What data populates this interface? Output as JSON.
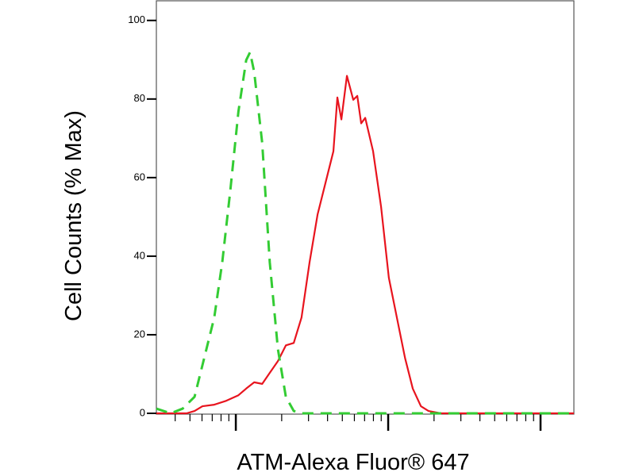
{
  "chart_data": {
    "type": "line",
    "x_label": "ATM-Alexa Fluor® 647",
    "y_label": "Cell Counts (% Max)",
    "xscale": "log",
    "xlim": [
      3.01,
      1655
    ],
    "xticks": [
      4,
      5,
      6,
      7,
      8,
      9,
      10,
      20,
      30,
      40,
      50,
      60,
      70,
      80,
      90,
      100,
      200,
      300,
      400,
      500,
      600,
      700,
      800,
      900,
      1000
    ],
    "ylim": [
      0,
      105
    ],
    "yticks": [
      0,
      20,
      40,
      60,
      80,
      100
    ],
    "series": [
      {
        "color": "#e8141e",
        "dash": false,
        "x": [
          3.01,
          4.75,
          5.36,
          6.04,
          7.22,
          8.66,
          10.4,
          11.7,
          13.2,
          14.9,
          16.7,
          18.9,
          21.3,
          24.0,
          27.0,
          30.5,
          34.4,
          38.8,
          43.7,
          46.4,
          49.3,
          53.6,
          59.0,
          62.7,
          66.5,
          70.7,
          79.6,
          89.8,
          101,
          114,
          129,
          145,
          164,
          184,
          221,
          1655
        ],
        "values": [
          0,
          0,
          0.6,
          1.8,
          2.2,
          3.2,
          4.6,
          6.3,
          7.9,
          7.5,
          10.3,
          13.3,
          17.3,
          17.9,
          24.4,
          38.5,
          50.6,
          58.7,
          66.7,
          80.4,
          74.8,
          85.9,
          79.8,
          80.8,
          73.8,
          75.2,
          66.7,
          52.6,
          34.5,
          24.4,
          14.1,
          6.3,
          1.8,
          0.6,
          0,
          0
        ]
      },
      {
        "color": "#33cc33",
        "dash": true,
        "x": [
          3.01,
          3.74,
          4.48,
          5.36,
          6.41,
          7.22,
          8.15,
          9.2,
          10.4,
          11.7,
          12.4,
          13.2,
          14.9,
          16.7,
          18.9,
          21.3,
          24.0,
          27.0,
          1655
        ],
        "values": [
          1.2,
          0,
          1.2,
          4.2,
          16.3,
          24.4,
          38.5,
          56.7,
          76.8,
          89.9,
          91.9,
          86.9,
          68.8,
          38.5,
          16.3,
          4.2,
          0.6,
          0,
          0
        ]
      }
    ]
  }
}
